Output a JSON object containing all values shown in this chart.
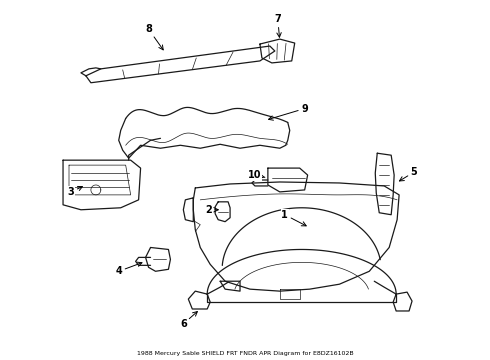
{
  "title": "1988 Mercury Sable SHIELD FRT FNDR APR Diagram for E8DZ16102B",
  "background_color": "#ffffff",
  "line_color": "#1a1a1a",
  "label_color": "#000000",
  "fig_width": 4.9,
  "fig_height": 3.6,
  "dpi": 100
}
